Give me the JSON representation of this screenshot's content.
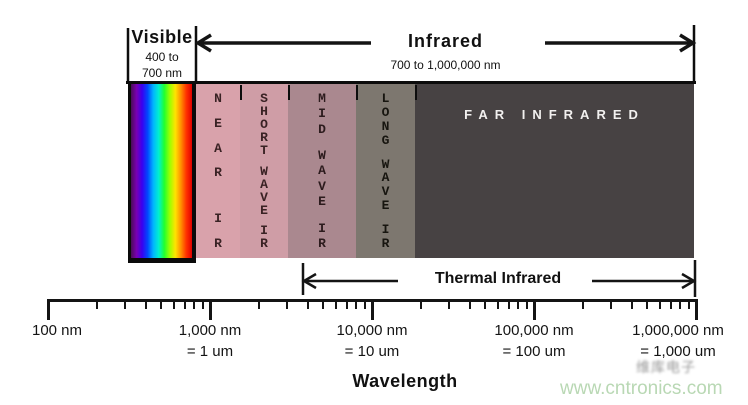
{
  "header": {
    "visible": {
      "label": "Visible",
      "range_line1": "400 to",
      "range_line2": "700 nm"
    },
    "infrared": {
      "label": "Infrared",
      "range": "700 to 1,000,000 nm"
    }
  },
  "bands": {
    "rainbow_colors": [
      "#4a0d56",
      "#7a00b4",
      "#3a00f0",
      "#0048ff",
      "#00b4ff",
      "#00f0d0",
      "#20ff30",
      "#9cff00",
      "#ffe400",
      "#ff9000",
      "#ff3000",
      "#df0000"
    ],
    "items": [
      {
        "id": "near-ir",
        "words": [
          "NEAR",
          "IR"
        ],
        "bg": "#d9a2ab",
        "fg": "#3a2224"
      },
      {
        "id": "short-wave-ir",
        "words": [
          "SHORT",
          "WAVE",
          "IR"
        ],
        "bg": "#cf9da6",
        "fg": "#3a2224"
      },
      {
        "id": "mid-wave-ir",
        "words": [
          "MID",
          "WAVE",
          "IR"
        ],
        "bg": "#aa888f",
        "fg": "#2c1b1d"
      },
      {
        "id": "long-wave-ir",
        "words": [
          "LONG",
          "WAVE",
          "IR"
        ],
        "bg": "#7d776f",
        "fg": "#17150f"
      },
      {
        "id": "far-infrared",
        "label": "FAR INFRARED",
        "bg": "#474243",
        "fg": "#f2f0ef"
      }
    ]
  },
  "thermal": {
    "label": "Thermal Infrared"
  },
  "ruler": {
    "ticks": [
      {
        "label_nm": "100 nm",
        "label_um": ""
      },
      {
        "label_nm": "1,000 nm",
        "label_um": "= 1 um"
      },
      {
        "label_nm": "10,000 nm",
        "label_um": "= 10 um"
      },
      {
        "label_nm": "100,000 nm",
        "label_um": "= 100 um"
      },
      {
        "label_nm": "1,000,000 nm",
        "label_um": "= 1,000 um"
      }
    ],
    "minor_multiples": [
      2,
      3,
      4,
      5,
      6,
      7,
      8,
      9
    ]
  },
  "footer": {
    "axis_title": "Wavelength"
  },
  "watermark": {
    "cn_text": "维库电子",
    "site": "www.cntronics.com",
    "site_color": "#b9d8b4"
  }
}
